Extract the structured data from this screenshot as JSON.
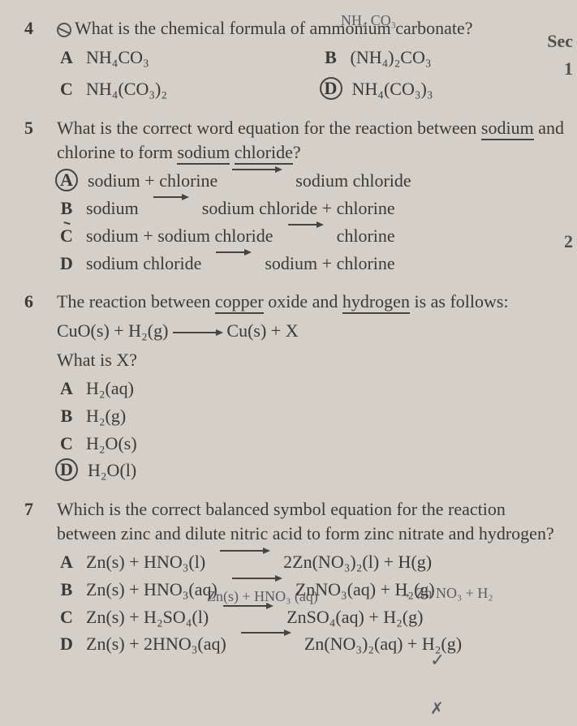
{
  "handwriting": {
    "hw1": "NH₄ CO₃",
    "hw2": "Zn(s) + HNO₃ (aq)",
    "hw3": "→ Zn NO₃ + H₂",
    "hw4": "✓",
    "hw5": "✗"
  },
  "side": {
    "sec": "Sec",
    "one": "1",
    "two": "2"
  },
  "q4": {
    "num": "4",
    "stem": "What is the chemical formula of ammonium carbonate?",
    "A": "NH₄CO₃",
    "B": "(NH₄)₂CO₃",
    "C": "NH₄(CO₃)₂",
    "D": "NH₄(CO₃)₃"
  },
  "q5": {
    "num": "5",
    "stem1": "What is the correct word equation for the reaction between ",
    "stem_u1": "sodium",
    "stem2": " and chlorine to form ",
    "stem_u2": "sodium",
    "stem3": " ",
    "stem_u3": "chloride",
    "stem4": "?",
    "A1": "sodium + chlorine",
    "A2": "sodium chloride",
    "B1": "sodium",
    "B2": "sodium chloride + chlorine",
    "C1": "sodium + sodium chloride",
    "C2": "chlorine",
    "D1": "sodium chloride",
    "D2": "sodium + chlorine"
  },
  "q6": {
    "num": "6",
    "stem1": "The reaction between ",
    "stem_u1": "copper",
    "stem2": " oxide and ",
    "stem_u2": "hydrogen",
    "stem3": " is as follows:",
    "eq_l": "CuO(s) + H₂(g)",
    "eq_r": "Cu(s) + X",
    "stem4": "What is X?",
    "A": "H₂(aq)",
    "B": "H₂(g)",
    "C": "H₂O(s)",
    "D": "H₂O(l)"
  },
  "q7": {
    "num": "7",
    "stem": "Which is the correct balanced symbol equation for the reaction between zinc and dilute nitric acid to form zinc nitrate and hydrogen?",
    "A_l": "Zn(s) + HNO₃(l)",
    "A_r": "2Zn(NO₃)₂(l) + H(g)",
    "B_l": "Zn(s) + HNO₃(aq)",
    "B_r": "ZnNO₃(aq) + H₂(g)",
    "C_l": "Zn(s) + H₂SO₄(l)",
    "C_r": "ZnSO₄(aq) + H₂(g)",
    "D_l": "Zn(s) + 2HNO₃(aq)",
    "D_r": "Zn(NO₃)₂(aq) + H₂(g)"
  },
  "letters": {
    "A": "A",
    "B": "B",
    "C": "C",
    "D": "D"
  }
}
